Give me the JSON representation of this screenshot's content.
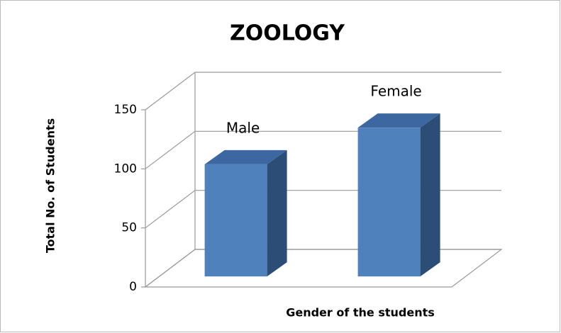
{
  "chart_data": {
    "type": "bar3d",
    "title": "ZOOLOGY",
    "x_label": "Gender of the students",
    "y_label": "Total No. of Students",
    "categories": [
      "Male",
      "Female"
    ],
    "values": [
      95,
      126
    ],
    "color": "#4f81bd",
    "ylim": [
      0,
      150
    ],
    "yticks": [
      0,
      50,
      100,
      150
    ],
    "grid": true
  }
}
